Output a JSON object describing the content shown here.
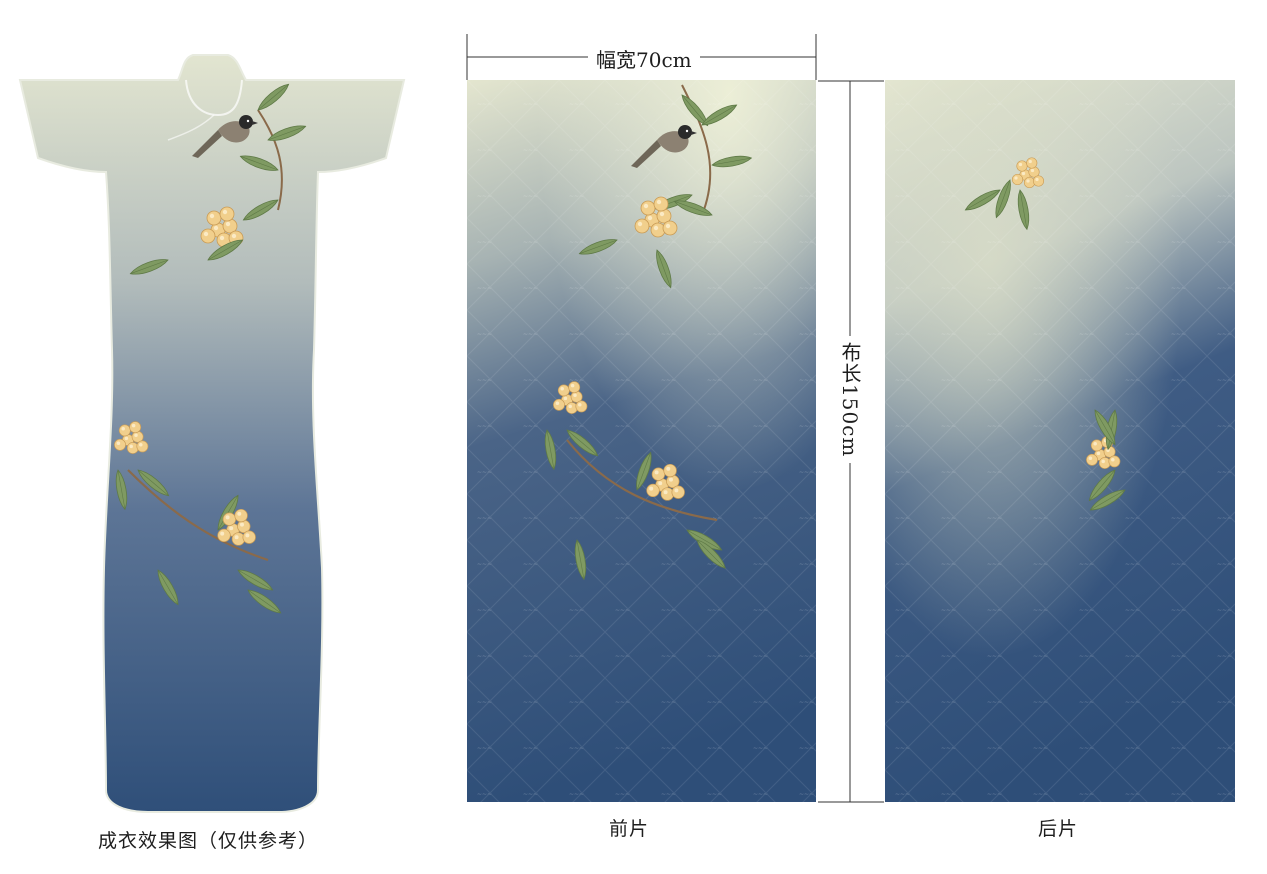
{
  "garment_preview": {
    "caption": "成衣效果图（仅供参考）"
  },
  "dimensions": {
    "width_label": "幅宽70cm",
    "length_label_cjk": "布长",
    "length_label_num": "150cm"
  },
  "panels": {
    "front_label": "前片",
    "back_label": "后片"
  },
  "colors": {
    "top_light": "#e6e8d2",
    "mid_grey": "#a9b4b4",
    "deep_blue": "#2e4d77",
    "leaf_green": "#7d9a5f",
    "fruit_yellow": "#f0cc86",
    "branch_brown": "#8a6a4a"
  }
}
